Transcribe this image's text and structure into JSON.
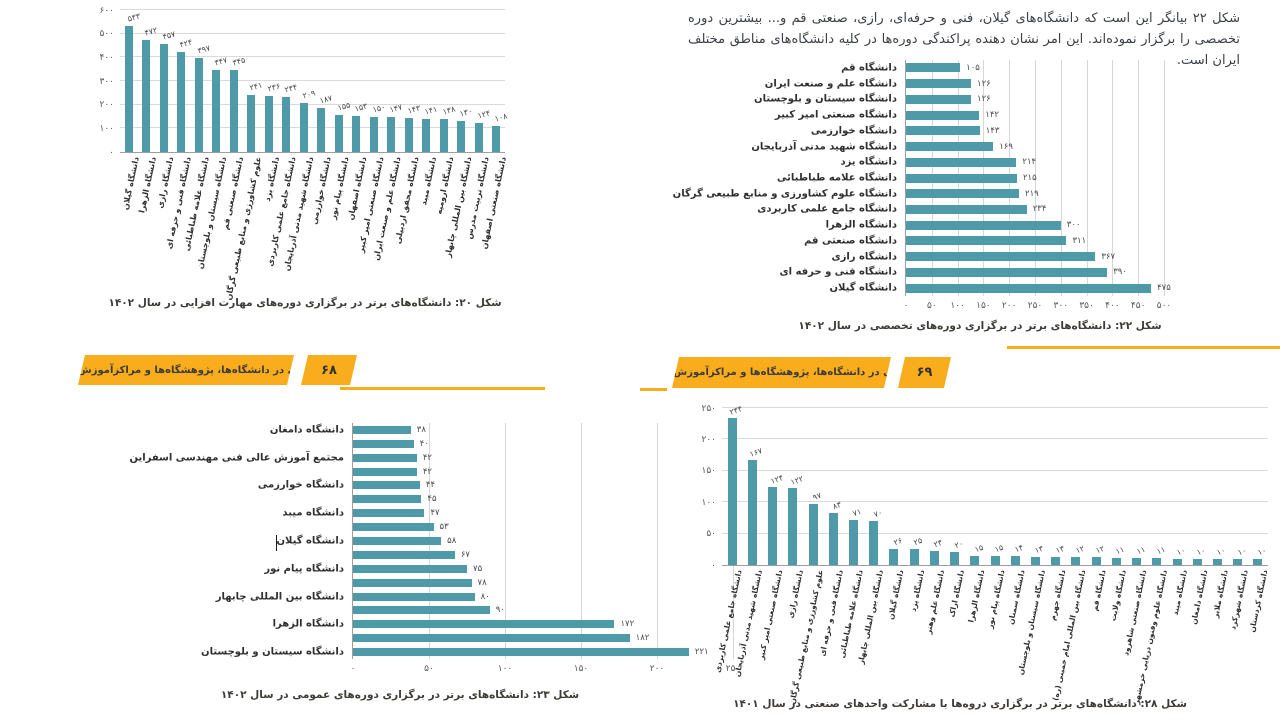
{
  "document": {
    "paragraph": "شکل ۲۲ بیانگر این است که دانشگاه‌های گیلان، فنی و حرفه‌ای، رازی، صنعتی قم و... بیشترین دوره تخصصی را برگزار نموده‌اند. این امر نشان دهنده پراکندگی دوره‌ها در کلیه دانشگاه‌های مناطق مختلف ایران است.",
    "header_left": {
      "title": "مهارت‌افزایی در دانشگاه‌ها، پژوهشگاه‌ها و مراکزآموزش عالی کشور",
      "page_number": "۶۸"
    },
    "header_right": {
      "title": "مهارت‌افزایی در دانشگاه‌ها، پژوهشگاه‌ها و مراکزآموزش عالی کشور",
      "page_number": "۶۹"
    },
    "accent_color": "#F9AD1D"
  },
  "chart_data": [
    {
      "id": "figure20",
      "type": "bar",
      "orient": "v",
      "title": "شکل ۲۰: دانشگاه‌های برتر در برگزاری دوره‌های مهارت افزایی در سال ۱۴۰۲",
      "categories": [
        "دانشگاه گیلان",
        "دانشگاه الزهرا",
        "دانشگاه رازی",
        "دانشگاه فنی و حرفه ای",
        "دانشگاه علامه طباطبائی",
        "دانشگاه سیستان و بلوچستان",
        "دانشگاه صنعتی قم",
        "علوم کشاورزی و منابع طبیعی گرگان",
        "دانشگاه یزد",
        "دانشگاه جامع علمی کاربردی",
        "دانشگاه شهید مدنی آذربایجان",
        "دانشگاه خوارزمی",
        "دانشگاه پیام نور",
        "دانشگاه اصفهان",
        "دانشگاه صنعتی امیر کبیر",
        "دانشگاه علم و صنعت ایران",
        "دانشگاه محقق اردبیلی",
        "دانشگاه میبد",
        "دانشگاه ارومیه",
        "دانشگاه بین المللی چابهار",
        "دانشگاه تربیت مدرس",
        "دانشگاه صنعتی اصفهان"
      ],
      "values": [
        533,
        472,
        457,
        424,
        397,
        347,
        345,
        241,
        236,
        234,
        209,
        187,
        155,
        153,
        150,
        147,
        143,
        141,
        138,
        130,
        124,
        108
      ],
      "ylim": [
        0,
        600
      ],
      "step": 100,
      "bar_color": "#4F9AA9",
      "grid": true
    },
    {
      "id": "figure22",
      "type": "bar-horizontal",
      "orient": "h",
      "title": "شکل ۲۲: دانشگاه‌های برتر در برگزاری دوره‌های تخصصی در سال ۱۴۰۲",
      "categories": [
        "دانشگاه قم",
        "دانشگاه علم و صنعت ایران",
        "دانشگاه سیستان و بلوچستان",
        "دانشگاه صنعتی امیر کبیر",
        "دانشگاه خوارزمی",
        "دانشگاه شهید مدنی آذربایجان",
        "دانشگاه یزد",
        "دانشگاه علامه طباطبائی",
        "دانشگاه علوم کشاورزی و منابع طبیعی گرگان",
        "دانشگاه جامع علمی کاربردی",
        "دانشگاه الزهرا",
        "دانشگاه صنعتی قم",
        "دانشگاه رازی",
        "دانشگاه فنی و حرفه ای",
        "دانشگاه گیلان"
      ],
      "values": [
        105,
        126,
        126,
        142,
        143,
        169,
        214,
        215,
        219,
        234,
        300,
        311,
        367,
        390,
        475
      ],
      "xlim": [
        0,
        500
      ],
      "step": 50,
      "bar_color": "#4F9AA9",
      "grid": true
    },
    {
      "id": "figure23",
      "type": "bar-horizontal",
      "orient": "h",
      "title": "شکل ۲۳: دانشگاه‌های برتر در برگزاری دوره‌های عمومی در سال ۱۴۰۲",
      "categories": [
        "دانشگاه دامغان",
        "",
        "مجتمع آموزش عالی فنی مهندسی اسفراین",
        "",
        "دانشگاه خوارزمی",
        "",
        "دانشگاه میبد",
        "",
        "دانشگاه گیلان",
        "",
        "دانشگاه پیام نور",
        "",
        "دانشگاه بین المللی چابهار",
        "",
        "دانشگاه الزهرا",
        "",
        "دانشگاه سیستان و بلوچستان"
      ],
      "values": [
        38,
        40,
        42,
        42,
        44,
        45,
        47,
        53,
        58,
        67,
        75,
        78,
        80,
        90,
        172,
        182,
        221
      ],
      "xlim": [
        0,
        250
      ],
      "step": 50,
      "bar_color": "#4F9AA9",
      "grid": true
    },
    {
      "id": "figure28",
      "type": "bar",
      "orient": "v",
      "title": "شکل ۲۸: دانشگاه‌های برتر در برگزاری دروه‌ها با مشارکت واحدهای صنعتی در سال ۱۴۰۱",
      "categories": [
        "دانشگاه جامع علمی کاربردی",
        "دانشگاه شهید مدنی آذربایجان",
        "دانشگاه صنعتی امیر کبیر",
        "دانشگاه رازی",
        "علوم کشاورزی و منابع طبیعی گرگان",
        "دانشگاه فنی و حرفه ای",
        "دانشگاه علامه طباطبائی",
        "دانشگاه بین المللی چابهار",
        "دانشگاه گیلان",
        "دانشگاه یزد",
        "دانشگاه علم وهنر",
        "دانشگاه اراک",
        "دانشگاه الزهرا",
        "دانشگاه پیام نور",
        "دانشگاه سمنان",
        "دانشگاه سیستان و بلوچستان",
        "دانشگاه جهرم",
        "دانشگاه بین المللی امام خمینی (ره)",
        "دانشگاه قم",
        "دانشگاه ولایت",
        "دانشگاه صنعتی شاهرود",
        "دانشگاه علوم وفنون دریایی خرمشهر",
        "دانشگاه میبد",
        "دانشگاه دامغان",
        "دانشگاه ملایر",
        "دانشگاه شهرکرد",
        "دانشگاه کردستان"
      ],
      "values": [
        234,
        167,
        124,
        122,
        97,
        83,
        71,
        70,
        26,
        25,
        23,
        20,
        15,
        15,
        14,
        13,
        13,
        12,
        12,
        11,
        11,
        11,
        10,
        10,
        10,
        10,
        10
      ],
      "ylim": [
        0,
        250
      ],
      "step": 50,
      "bar_color": "#4F9AA9",
      "grid": true
    }
  ]
}
